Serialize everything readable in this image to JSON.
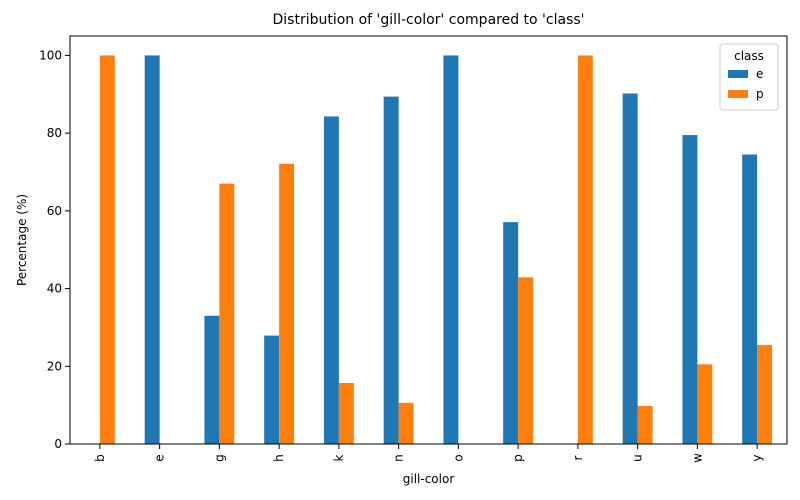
{
  "chart_data": {
    "type": "bar",
    "title": "Distribution of 'gill-color' compared to 'class'",
    "xlabel": "gill-color",
    "ylabel": "Percentage (%)",
    "categories": [
      "b",
      "e",
      "g",
      "h",
      "k",
      "n",
      "o",
      "p",
      "r",
      "u",
      "w",
      "y"
    ],
    "series": [
      {
        "name": "e",
        "color": "#1f77b4",
        "values": [
          0,
          100,
          33.0,
          27.9,
          84.3,
          89.4,
          100,
          57.1,
          0,
          90.2,
          79.5,
          74.5
        ]
      },
      {
        "name": "p",
        "color": "#ff7f0e",
        "values": [
          100,
          0,
          67.0,
          72.1,
          15.7,
          10.6,
          0,
          42.9,
          100,
          9.8,
          20.5,
          25.5
        ]
      }
    ],
    "ylim": [
      0,
      105
    ],
    "yticks": [
      0,
      20,
      40,
      60,
      80,
      100
    ],
    "legend": {
      "title": "class",
      "position": "top-right"
    },
    "grid": false
  }
}
